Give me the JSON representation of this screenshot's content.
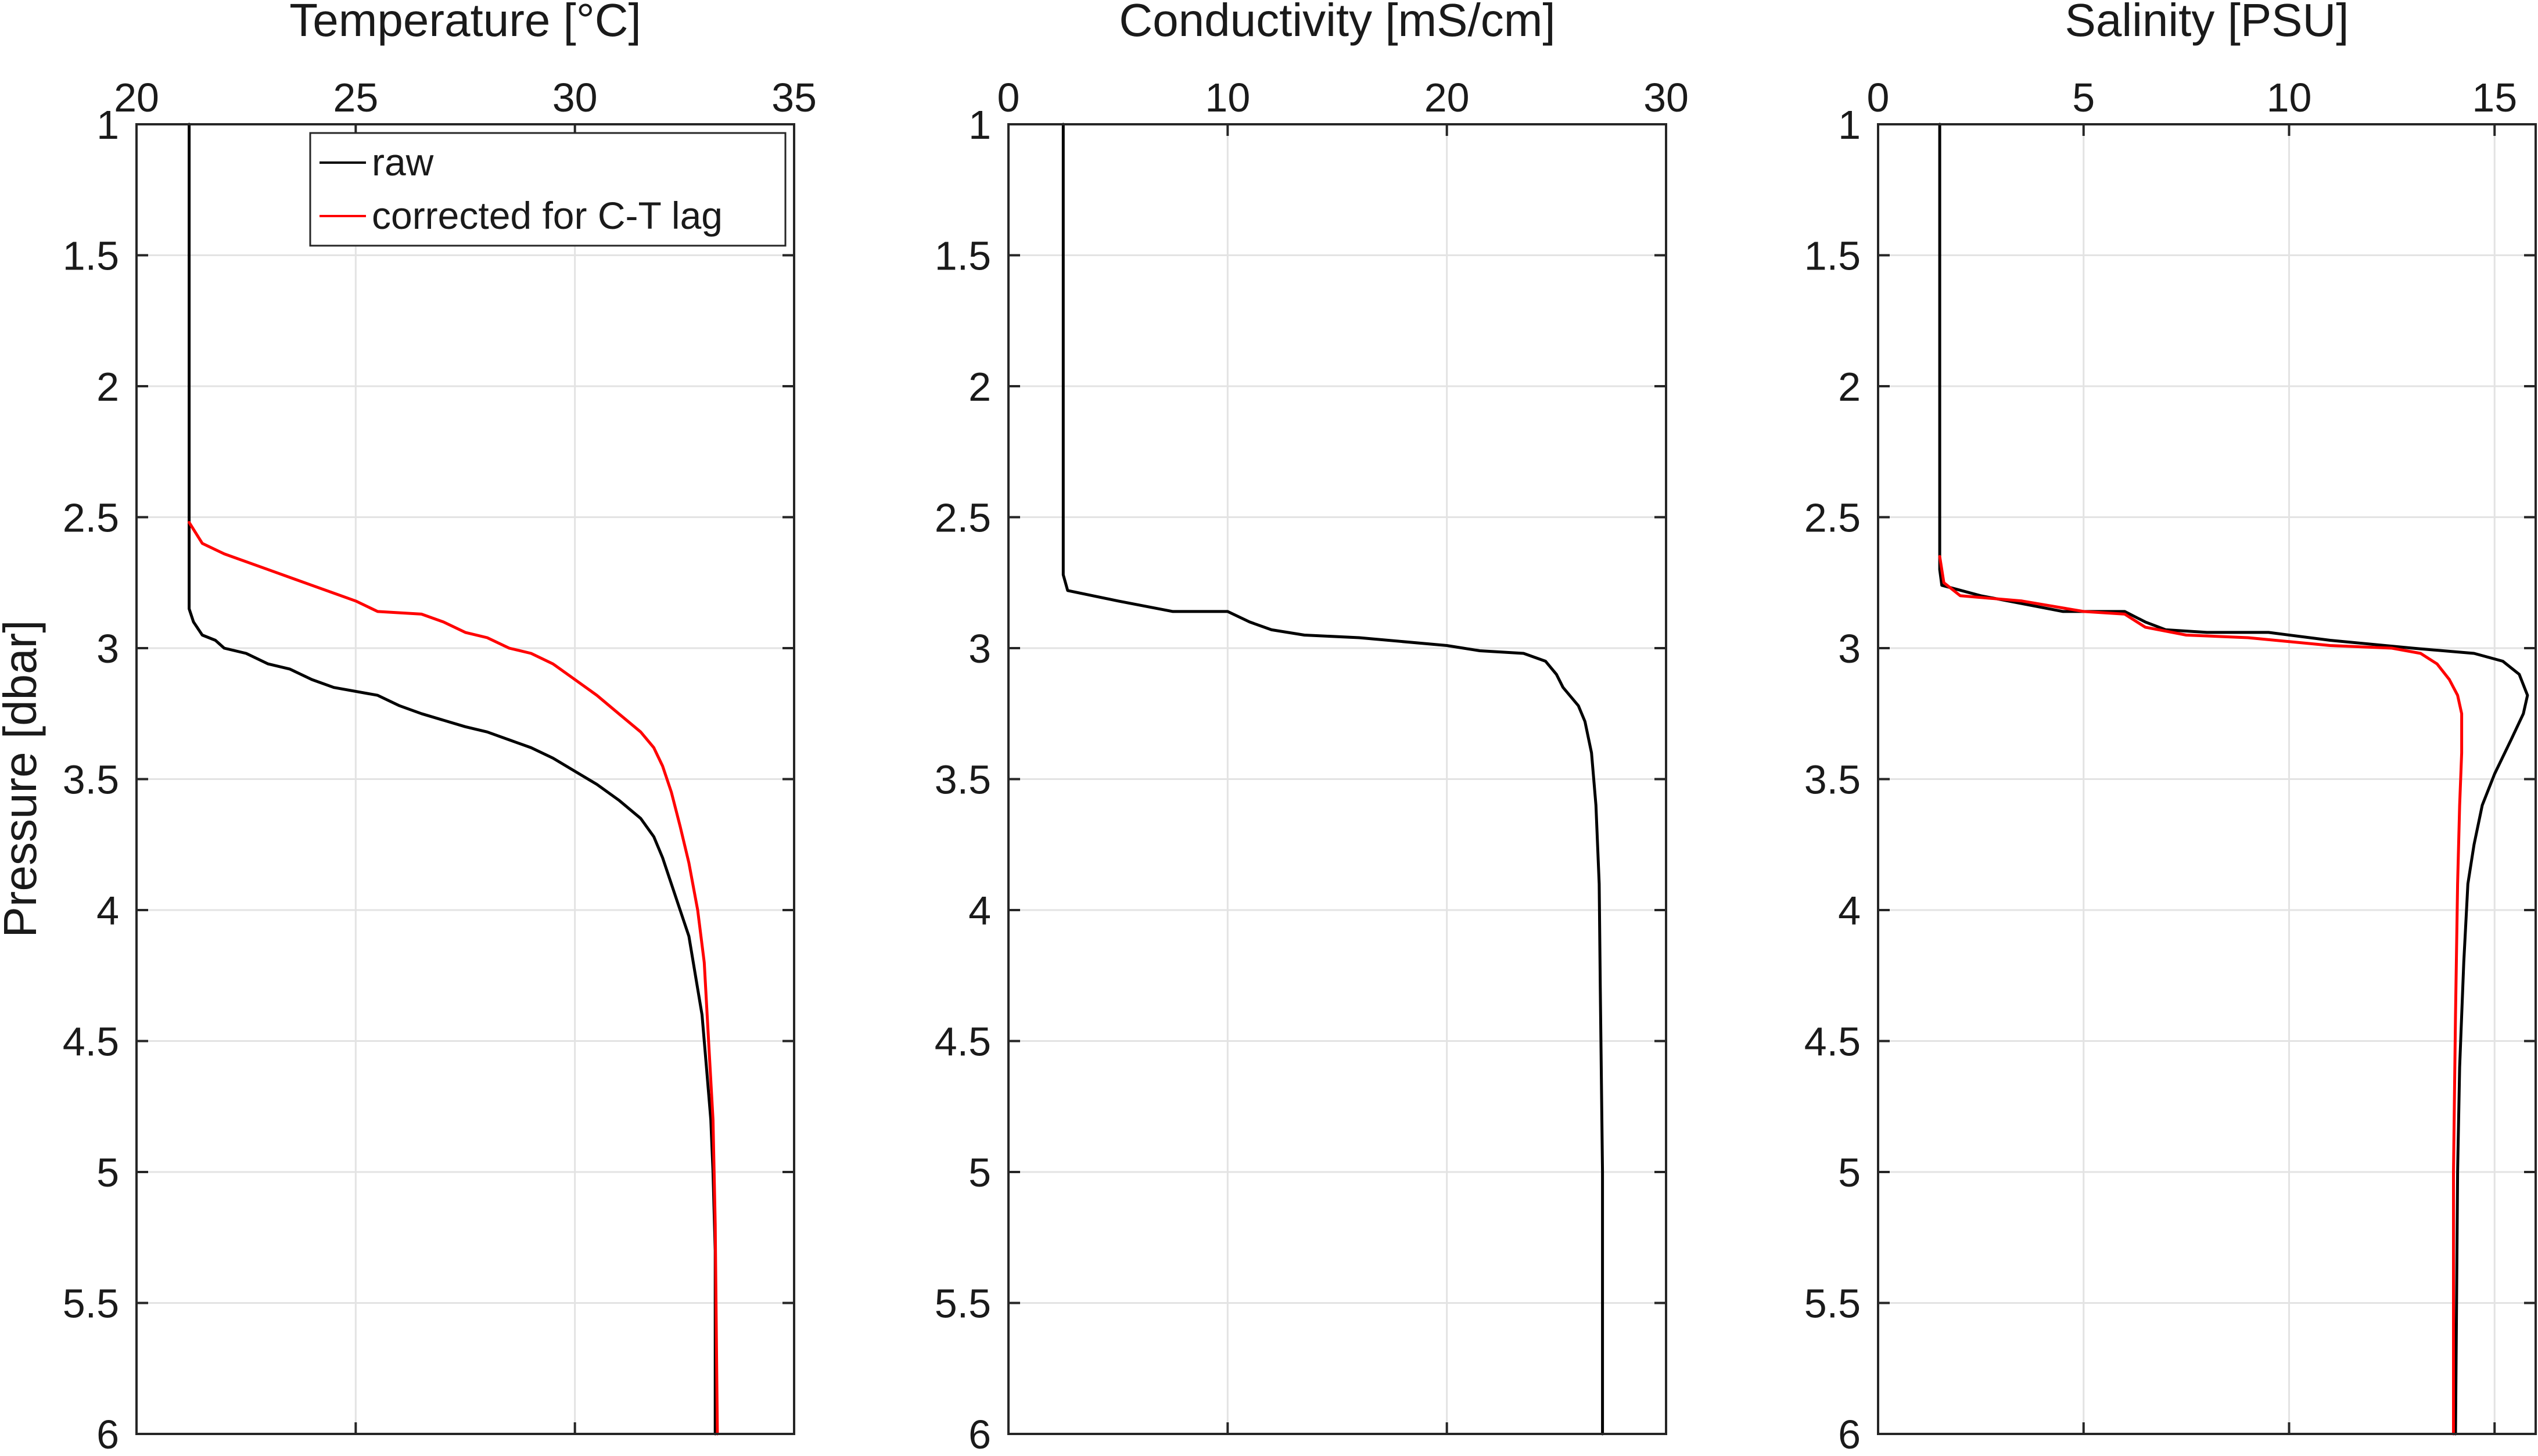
{
  "figure": {
    "ylabel": "Pressure [dbar]"
  },
  "legend": {
    "entries": [
      {
        "label": "raw",
        "color": "#000000"
      },
      {
        "label": "corrected for C-T lag",
        "color": "#ff0000"
      }
    ]
  },
  "chart_data": [
    {
      "type": "line",
      "title": "Temperature [°C]",
      "xlabel": "",
      "ylabel": "Pressure [dbar]",
      "xlim": [
        20,
        35
      ],
      "ylim": [
        1,
        6
      ],
      "y_reversed": true,
      "x_axis_location": "top",
      "xticks": [
        "20",
        "25",
        "30",
        "35"
      ],
      "yticks": [
        "1",
        "1.5",
        "2",
        "2.5",
        "3",
        "3.5",
        "4",
        "4.5",
        "5",
        "5.5",
        "6"
      ],
      "grid": true,
      "legend": "top-right",
      "series": [
        {
          "name": "raw",
          "color": "#000000",
          "points": [
            [
              21.2,
              1.0
            ],
            [
              21.2,
              2.85
            ],
            [
              21.3,
              2.9
            ],
            [
              21.5,
              2.95
            ],
            [
              21.8,
              2.97
            ],
            [
              22.0,
              3.0
            ],
            [
              22.5,
              3.02
            ],
            [
              23.0,
              3.06
            ],
            [
              23.5,
              3.08
            ],
            [
              24.0,
              3.12
            ],
            [
              24.5,
              3.15
            ],
            [
              25.5,
              3.18
            ],
            [
              26.0,
              3.22
            ],
            [
              26.5,
              3.25
            ],
            [
              27.5,
              3.3
            ],
            [
              28.0,
              3.32
            ],
            [
              28.5,
              3.35
            ],
            [
              29.0,
              3.38
            ],
            [
              29.5,
              3.42
            ],
            [
              30.0,
              3.47
            ],
            [
              30.5,
              3.52
            ],
            [
              31.0,
              3.58
            ],
            [
              31.5,
              3.65
            ],
            [
              31.8,
              3.72
            ],
            [
              32.0,
              3.8
            ],
            [
              32.2,
              3.9
            ],
            [
              32.4,
              4.0
            ],
            [
              32.6,
              4.1
            ],
            [
              32.75,
              4.25
            ],
            [
              32.9,
              4.4
            ],
            [
              33.0,
              4.6
            ],
            [
              33.1,
              4.8
            ],
            [
              33.15,
              5.0
            ],
            [
              33.2,
              5.3
            ],
            [
              33.2,
              6.0
            ]
          ]
        },
        {
          "name": "corrected for C-T lag",
          "color": "#ff0000",
          "points": [
            [
              21.2,
              2.52
            ],
            [
              21.5,
              2.6
            ],
            [
              22.0,
              2.64
            ],
            [
              23.0,
              2.7
            ],
            [
              24.0,
              2.76
            ],
            [
              25.0,
              2.82
            ],
            [
              25.5,
              2.86
            ],
            [
              26.5,
              2.87
            ],
            [
              27.0,
              2.9
            ],
            [
              27.5,
              2.94
            ],
            [
              28.0,
              2.96
            ],
            [
              28.5,
              3.0
            ],
            [
              29.0,
              3.02
            ],
            [
              29.5,
              3.06
            ],
            [
              30.0,
              3.12
            ],
            [
              30.5,
              3.18
            ],
            [
              31.0,
              3.25
            ],
            [
              31.5,
              3.32
            ],
            [
              31.8,
              3.38
            ],
            [
              32.0,
              3.45
            ],
            [
              32.2,
              3.55
            ],
            [
              32.4,
              3.68
            ],
            [
              32.6,
              3.82
            ],
            [
              32.8,
              4.0
            ],
            [
              32.95,
              4.2
            ],
            [
              33.05,
              4.5
            ],
            [
              33.15,
              4.8
            ],
            [
              33.2,
              5.2
            ],
            [
              33.25,
              6.0
            ]
          ]
        }
      ]
    },
    {
      "type": "line",
      "title": "Conductivity [mS/cm]",
      "xlabel": "",
      "ylabel": "",
      "xlim": [
        0,
        30
      ],
      "ylim": [
        1,
        6
      ],
      "y_reversed": true,
      "x_axis_location": "top",
      "xticks": [
        "0",
        "10",
        "20",
        "30"
      ],
      "yticks": [
        "1",
        "1.5",
        "2",
        "2.5",
        "3",
        "3.5",
        "4",
        "4.5",
        "5",
        "5.5",
        "6"
      ],
      "grid": true,
      "series": [
        {
          "color": "#000000",
          "points": [
            [
              2.5,
              1.0
            ],
            [
              2.5,
              2.72
            ],
            [
              2.7,
              2.78
            ],
            [
              5.0,
              2.82
            ],
            [
              7.5,
              2.86
            ],
            [
              10.0,
              2.86
            ],
            [
              11.0,
              2.9
            ],
            [
              12.0,
              2.93
            ],
            [
              13.5,
              2.95
            ],
            [
              16.0,
              2.96
            ],
            [
              20.0,
              2.99
            ],
            [
              21.5,
              3.01
            ],
            [
              23.5,
              3.02
            ],
            [
              24.5,
              3.05
            ],
            [
              25.0,
              3.1
            ],
            [
              25.3,
              3.15
            ],
            [
              25.6,
              3.18
            ],
            [
              26.0,
              3.22
            ],
            [
              26.3,
              3.28
            ],
            [
              26.6,
              3.4
            ],
            [
              26.8,
              3.6
            ],
            [
              26.95,
              3.9
            ],
            [
              27.0,
              4.3
            ],
            [
              27.1,
              5.0
            ],
            [
              27.1,
              6.0
            ]
          ]
        }
      ]
    },
    {
      "type": "line",
      "title": "Salinity [PSU]",
      "xlabel": "",
      "ylabel": "",
      "xlim": [
        0,
        16
      ],
      "ylim": [
        1,
        6
      ],
      "y_reversed": true,
      "x_axis_location": "top",
      "xticks": [
        "0",
        "5",
        "10",
        "15"
      ],
      "yticks": [
        "1",
        "1.5",
        "2",
        "2.5",
        "3",
        "3.5",
        "4",
        "4.5",
        "5",
        "5.5",
        "6"
      ],
      "grid": true,
      "series": [
        {
          "name": "raw",
          "color": "#000000",
          "points": [
            [
              1.5,
              1.0
            ],
            [
              1.5,
              2.7
            ],
            [
              1.55,
              2.76
            ],
            [
              2.5,
              2.8
            ],
            [
              3.5,
              2.83
            ],
            [
              4.5,
              2.86
            ],
            [
              6.0,
              2.86
            ],
            [
              6.5,
              2.9
            ],
            [
              7.0,
              2.93
            ],
            [
              8.0,
              2.94
            ],
            [
              9.5,
              2.94
            ],
            [
              11.0,
              2.97
            ],
            [
              13.0,
              3.0
            ],
            [
              14.5,
              3.02
            ],
            [
              15.2,
              3.05
            ],
            [
              15.6,
              3.1
            ],
            [
              15.8,
              3.18
            ],
            [
              15.7,
              3.25
            ],
            [
              15.4,
              3.35
            ],
            [
              15.0,
              3.48
            ],
            [
              14.7,
              3.6
            ],
            [
              14.5,
              3.75
            ],
            [
              14.35,
              3.9
            ],
            [
              14.25,
              4.2
            ],
            [
              14.15,
              4.6
            ],
            [
              14.1,
              5.0
            ],
            [
              14.05,
              6.0
            ]
          ]
        },
        {
          "name": "corrected for C-T lag",
          "color": "#ff0000",
          "points": [
            [
              1.5,
              2.65
            ],
            [
              1.6,
              2.75
            ],
            [
              2.0,
              2.8
            ],
            [
              3.5,
              2.82
            ],
            [
              5.0,
              2.86
            ],
            [
              6.0,
              2.87
            ],
            [
              6.5,
              2.92
            ],
            [
              7.5,
              2.95
            ],
            [
              9.0,
              2.96
            ],
            [
              11.0,
              2.99
            ],
            [
              12.5,
              3.0
            ],
            [
              13.2,
              3.02
            ],
            [
              13.6,
              3.06
            ],
            [
              13.9,
              3.12
            ],
            [
              14.1,
              3.18
            ],
            [
              14.2,
              3.25
            ],
            [
              14.2,
              3.4
            ],
            [
              14.15,
              3.6
            ],
            [
              14.1,
              3.9
            ],
            [
              14.05,
              4.4
            ],
            [
              14.0,
              5.0
            ],
            [
              14.0,
              6.0
            ]
          ]
        }
      ]
    }
  ]
}
